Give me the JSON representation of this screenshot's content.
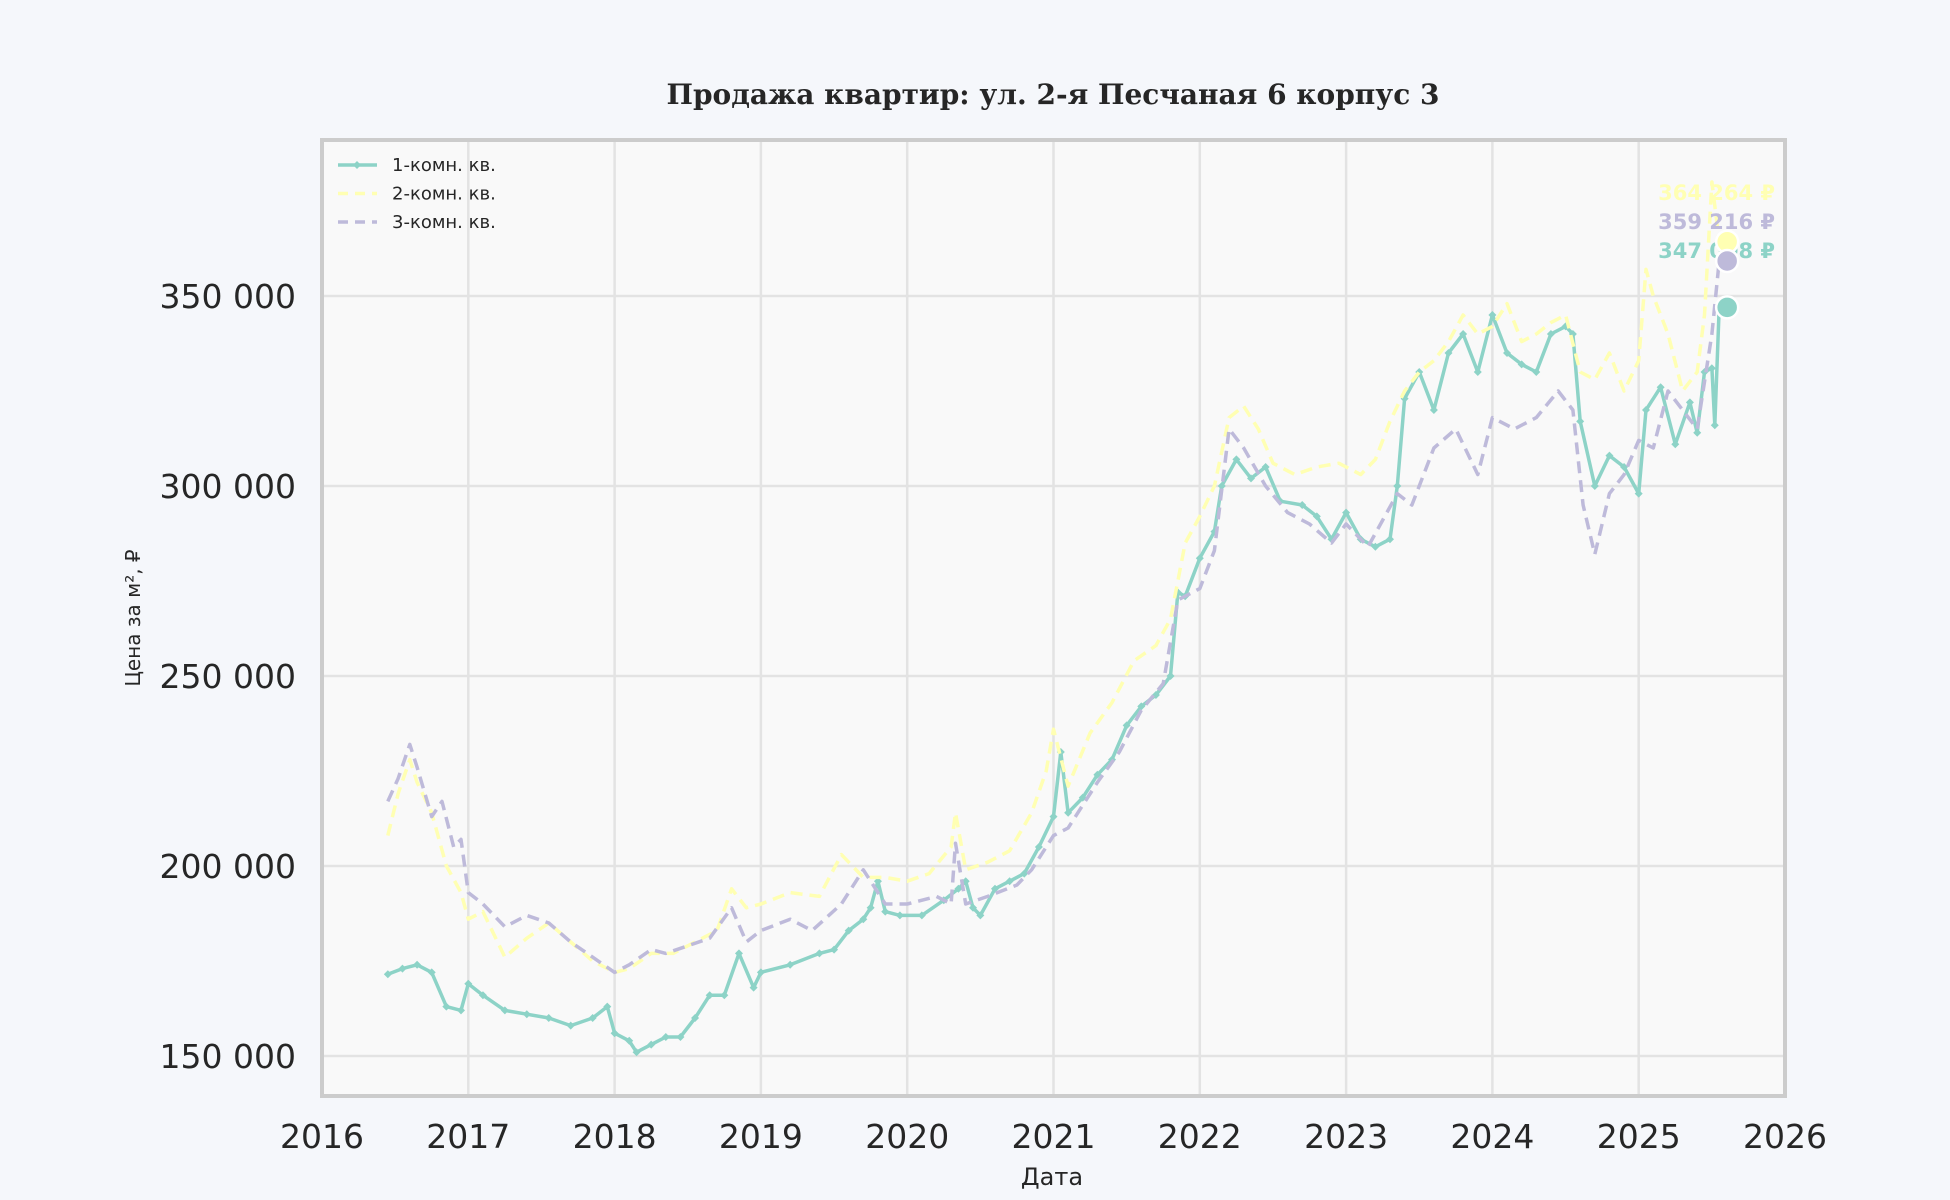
{
  "chart_data": {
    "type": "line",
    "title": "Продажа квартир: ул. 2-я Песчаная 6 корпус 3",
    "xlabel": "Дата",
    "ylabel": "Цена за м², ₽",
    "xlim": [
      2016,
      2026
    ],
    "ylim": [
      139500,
      391000
    ],
    "x_ticks": [
      "2016",
      "2017",
      "2018",
      "2019",
      "2020",
      "2021",
      "2022",
      "2023",
      "2024",
      "2025",
      "2026"
    ],
    "y_ticks": [
      {
        "value": 150000,
        "label": "150 000"
      },
      {
        "value": 200000,
        "label": "200 000"
      },
      {
        "value": 250000,
        "label": "250 000"
      },
      {
        "value": 300000,
        "label": "300 000"
      },
      {
        "value": 350000,
        "label": "350 000"
      }
    ],
    "grid": true,
    "legend_position": "upper left",
    "series": [
      {
        "name": "1-комн. кв.",
        "color": "#8dd3c7",
        "style": "solid-diamond",
        "last_value": 347008,
        "last_label": "347 008 ₽",
        "points": [
          [
            2016.45,
            171500
          ],
          [
            2016.55,
            173000
          ],
          [
            2016.65,
            174000
          ],
          [
            2016.75,
            172000
          ],
          [
            2016.85,
            163000
          ],
          [
            2016.95,
            162000
          ],
          [
            2017.0,
            169000
          ],
          [
            2017.1,
            166000
          ],
          [
            2017.25,
            162000
          ],
          [
            2017.4,
            161000
          ],
          [
            2017.55,
            160000
          ],
          [
            2017.7,
            158000
          ],
          [
            2017.85,
            160000
          ],
          [
            2017.95,
            163000
          ],
          [
            2018.0,
            156000
          ],
          [
            2018.1,
            154000
          ],
          [
            2018.15,
            151000
          ],
          [
            2018.25,
            153000
          ],
          [
            2018.35,
            155000
          ],
          [
            2018.45,
            155000
          ],
          [
            2018.55,
            160000
          ],
          [
            2018.65,
            166000
          ],
          [
            2018.75,
            166000
          ],
          [
            2018.85,
            177000
          ],
          [
            2018.95,
            168000
          ],
          [
            2019.0,
            172000
          ],
          [
            2019.2,
            174000
          ],
          [
            2019.4,
            177000
          ],
          [
            2019.5,
            178000
          ],
          [
            2019.6,
            183000
          ],
          [
            2019.7,
            186000
          ],
          [
            2019.75,
            189000
          ],
          [
            2019.8,
            196000
          ],
          [
            2019.85,
            188000
          ],
          [
            2019.95,
            187000
          ],
          [
            2020.1,
            187000
          ],
          [
            2020.25,
            191000
          ],
          [
            2020.35,
            194000
          ],
          [
            2020.4,
            196000
          ],
          [
            2020.45,
            189000
          ],
          [
            2020.5,
            187000
          ],
          [
            2020.6,
            194000
          ],
          [
            2020.7,
            196000
          ],
          [
            2020.8,
            198000
          ],
          [
            2020.9,
            205000
          ],
          [
            2021.0,
            213000
          ],
          [
            2021.05,
            230000
          ],
          [
            2021.1,
            214000
          ],
          [
            2021.2,
            218000
          ],
          [
            2021.3,
            224000
          ],
          [
            2021.4,
            228000
          ],
          [
            2021.5,
            237000
          ],
          [
            2021.6,
            242000
          ],
          [
            2021.7,
            245000
          ],
          [
            2021.8,
            250000
          ],
          [
            2021.85,
            272000
          ],
          [
            2021.9,
            271000
          ],
          [
            2022.0,
            281000
          ],
          [
            2022.1,
            288000
          ],
          [
            2022.15,
            300000
          ],
          [
            2022.25,
            307000
          ],
          [
            2022.35,
            302000
          ],
          [
            2022.45,
            305000
          ],
          [
            2022.55,
            296000
          ],
          [
            2022.7,
            295000
          ],
          [
            2022.8,
            292000
          ],
          [
            2022.9,
            286000
          ],
          [
            2023.0,
            293000
          ],
          [
            2023.1,
            286000
          ],
          [
            2023.2,
            284000
          ],
          [
            2023.3,
            286000
          ],
          [
            2023.35,
            300000
          ],
          [
            2023.4,
            323000
          ],
          [
            2023.5,
            330000
          ],
          [
            2023.6,
            320000
          ],
          [
            2023.7,
            335000
          ],
          [
            2023.8,
            340000
          ],
          [
            2023.9,
            330000
          ],
          [
            2024.0,
            345000
          ],
          [
            2024.1,
            335000
          ],
          [
            2024.2,
            332000
          ],
          [
            2024.3,
            330000
          ],
          [
            2024.4,
            340000
          ],
          [
            2024.5,
            342000
          ],
          [
            2024.55,
            340000
          ],
          [
            2024.6,
            317000
          ],
          [
            2024.7,
            300000
          ],
          [
            2024.8,
            308000
          ],
          [
            2024.9,
            305000
          ],
          [
            2025.0,
            298000
          ],
          [
            2025.05,
            320000
          ],
          [
            2025.15,
            326000
          ],
          [
            2025.25,
            311000
          ],
          [
            2025.35,
            322000
          ],
          [
            2025.4,
            314000
          ],
          [
            2025.45,
            330000
          ],
          [
            2025.5,
            331000
          ],
          [
            2025.52,
            316000
          ],
          [
            2025.55,
            347008
          ]
        ]
      },
      {
        "name": "2-комн. кв.",
        "color": "#ffffb3",
        "style": "dashed",
        "last_value": 364264,
        "last_label": "364 264 ₽",
        "points": [
          [
            2016.45,
            208000
          ],
          [
            2016.52,
            219000
          ],
          [
            2016.6,
            228000
          ],
          [
            2016.65,
            222000
          ],
          [
            2016.75,
            214000
          ],
          [
            2016.85,
            200000
          ],
          [
            2016.95,
            193000
          ],
          [
            2017.0,
            186000
          ],
          [
            2017.1,
            188000
          ],
          [
            2017.25,
            176000
          ],
          [
            2017.4,
            181000
          ],
          [
            2017.55,
            185000
          ],
          [
            2017.7,
            180000
          ],
          [
            2017.85,
            175000
          ],
          [
            2018.0,
            172000
          ],
          [
            2018.1,
            173000
          ],
          [
            2018.25,
            177000
          ],
          [
            2018.4,
            177000
          ],
          [
            2018.55,
            180000
          ],
          [
            2018.7,
            183000
          ],
          [
            2018.8,
            194000
          ],
          [
            2018.9,
            189000
          ],
          [
            2019.0,
            190000
          ],
          [
            2019.2,
            193000
          ],
          [
            2019.4,
            192000
          ],
          [
            2019.55,
            203000
          ],
          [
            2019.7,
            197000
          ],
          [
            2019.85,
            197000
          ],
          [
            2020.0,
            196000
          ],
          [
            2020.15,
            198000
          ],
          [
            2020.3,
            205000
          ],
          [
            2020.33,
            214000
          ],
          [
            2020.4,
            199000
          ],
          [
            2020.55,
            201000
          ],
          [
            2020.7,
            204000
          ],
          [
            2020.85,
            214000
          ],
          [
            2020.95,
            225000
          ],
          [
            2021.0,
            236000
          ],
          [
            2021.1,
            221000
          ],
          [
            2021.25,
            235000
          ],
          [
            2021.4,
            243000
          ],
          [
            2021.55,
            254000
          ],
          [
            2021.7,
            258000
          ],
          [
            2021.8,
            265000
          ],
          [
            2021.9,
            285000
          ],
          [
            2022.0,
            292000
          ],
          [
            2022.1,
            300000
          ],
          [
            2022.2,
            318000
          ],
          [
            2022.3,
            321000
          ],
          [
            2022.4,
            315000
          ],
          [
            2022.5,
            306000
          ],
          [
            2022.65,
            303000
          ],
          [
            2022.8,
            305000
          ],
          [
            2022.95,
            306000
          ],
          [
            2023.1,
            303000
          ],
          [
            2023.2,
            307000
          ],
          [
            2023.3,
            317000
          ],
          [
            2023.4,
            325000
          ],
          [
            2023.5,
            330000
          ],
          [
            2023.6,
            333000
          ],
          [
            2023.7,
            338000
          ],
          [
            2023.8,
            345000
          ],
          [
            2023.9,
            340000
          ],
          [
            2024.0,
            342000
          ],
          [
            2024.1,
            348000
          ],
          [
            2024.2,
            338000
          ],
          [
            2024.3,
            340000
          ],
          [
            2024.4,
            343000
          ],
          [
            2024.5,
            345000
          ],
          [
            2024.6,
            330000
          ],
          [
            2024.7,
            328000
          ],
          [
            2024.8,
            335000
          ],
          [
            2024.9,
            325000
          ],
          [
            2025.0,
            333000
          ],
          [
            2025.05,
            357000
          ],
          [
            2025.1,
            350000
          ],
          [
            2025.2,
            340000
          ],
          [
            2025.3,
            325000
          ],
          [
            2025.4,
            330000
          ],
          [
            2025.45,
            345000
          ],
          [
            2025.5,
            380000
          ],
          [
            2025.55,
            364264
          ]
        ]
      },
      {
        "name": "3-комн. кв.",
        "color": "#bebada",
        "style": "dashed",
        "last_value": 359216,
        "last_label": "359 216 ₽",
        "points": [
          [
            2016.45,
            217000
          ],
          [
            2016.52,
            223000
          ],
          [
            2016.6,
            232000
          ],
          [
            2016.65,
            226000
          ],
          [
            2016.75,
            213000
          ],
          [
            2016.82,
            217000
          ],
          [
            2016.9,
            205000
          ],
          [
            2016.95,
            207000
          ],
          [
            2017.0,
            193000
          ],
          [
            2017.1,
            190000
          ],
          [
            2017.25,
            184000
          ],
          [
            2017.4,
            187000
          ],
          [
            2017.55,
            185000
          ],
          [
            2017.7,
            180000
          ],
          [
            2017.85,
            176000
          ],
          [
            2018.0,
            172000
          ],
          [
            2018.1,
            174000
          ],
          [
            2018.25,
            178000
          ],
          [
            2018.35,
            177000
          ],
          [
            2018.5,
            179000
          ],
          [
            2018.65,
            181000
          ],
          [
            2018.8,
            189000
          ],
          [
            2018.9,
            180000
          ],
          [
            2019.0,
            183000
          ],
          [
            2019.2,
            186000
          ],
          [
            2019.35,
            183000
          ],
          [
            2019.55,
            190000
          ],
          [
            2019.7,
            199000
          ],
          [
            2019.85,
            190000
          ],
          [
            2020.0,
            190000
          ],
          [
            2020.2,
            192000
          ],
          [
            2020.3,
            190000
          ],
          [
            2020.33,
            206000
          ],
          [
            2020.4,
            190000
          ],
          [
            2020.55,
            192000
          ],
          [
            2020.75,
            195000
          ],
          [
            2020.85,
            199000
          ],
          [
            2021.0,
            208000
          ],
          [
            2021.1,
            210000
          ],
          [
            2021.3,
            222000
          ],
          [
            2021.45,
            230000
          ],
          [
            2021.6,
            241000
          ],
          [
            2021.75,
            248000
          ],
          [
            2021.85,
            270000
          ],
          [
            2022.0,
            273000
          ],
          [
            2022.1,
            283000
          ],
          [
            2022.2,
            315000
          ],
          [
            2022.3,
            310000
          ],
          [
            2022.45,
            300000
          ],
          [
            2022.6,
            293000
          ],
          [
            2022.75,
            290000
          ],
          [
            2022.9,
            285000
          ],
          [
            2023.0,
            290000
          ],
          [
            2023.15,
            284000
          ],
          [
            2023.35,
            298000
          ],
          [
            2023.45,
            295000
          ],
          [
            2023.6,
            310000
          ],
          [
            2023.75,
            315000
          ],
          [
            2023.9,
            303000
          ],
          [
            2024.0,
            318000
          ],
          [
            2024.15,
            315000
          ],
          [
            2024.3,
            318000
          ],
          [
            2024.45,
            325000
          ],
          [
            2024.55,
            320000
          ],
          [
            2024.62,
            295000
          ],
          [
            2024.7,
            282000
          ],
          [
            2024.8,
            298000
          ],
          [
            2024.9,
            303000
          ],
          [
            2025.0,
            312000
          ],
          [
            2025.1,
            310000
          ],
          [
            2025.2,
            325000
          ],
          [
            2025.3,
            320000
          ],
          [
            2025.4,
            315000
          ],
          [
            2025.5,
            340000
          ],
          [
            2025.55,
            359216
          ]
        ]
      }
    ]
  }
}
